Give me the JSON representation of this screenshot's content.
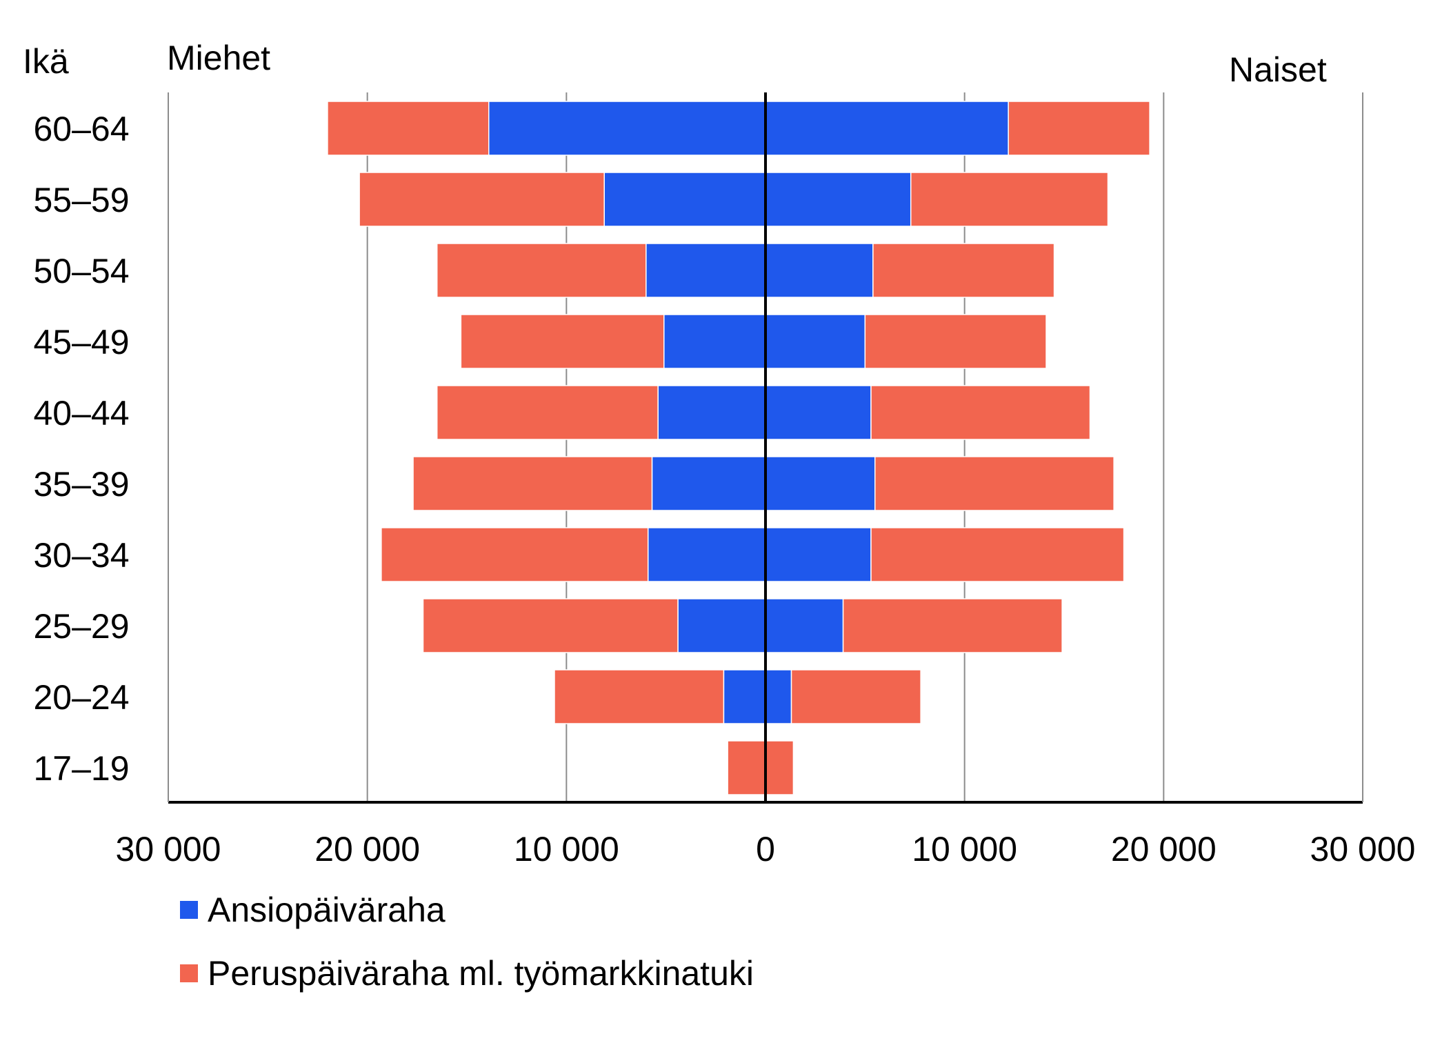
{
  "chart_data": {
    "type": "bar",
    "orientation": "horizontal",
    "layout": "population-pyramid",
    "category_axis_label": "Ikä",
    "left_group_label": "Miehet",
    "right_group_label": "Naiset",
    "categories": [
      "60–64",
      "55–59",
      "50–54",
      "45–49",
      "40–44",
      "35–39",
      "30–34",
      "25–29",
      "20–24",
      "17–19"
    ],
    "x_tick_values": [
      -30000,
      -20000,
      -10000,
      0,
      10000,
      20000,
      30000
    ],
    "x_tick_labels": [
      "30 000",
      "20 000",
      "10 000",
      "0",
      "10 000",
      "20 000",
      "30 000"
    ],
    "xlim": [
      -30000,
      30000
    ],
    "grid": true,
    "legend_position": "bottom-left",
    "series": [
      {
        "name": "Ansiopäiväraha",
        "color": "#1f58ec",
        "men": [
          13900,
          8100,
          6000,
          5100,
          5400,
          5700,
          5900,
          4400,
          2100,
          0
        ],
        "women": [
          12200,
          7300,
          5400,
          5000,
          5300,
          5500,
          5300,
          3900,
          1300,
          0
        ]
      },
      {
        "name": "Peruspäiväraha ml. työmarkkinatuki",
        "color": "#f2654f",
        "men": [
          8100,
          12300,
          10500,
          10200,
          11100,
          12000,
          13400,
          12800,
          8500,
          1900
        ],
        "women": [
          7100,
          9900,
          9100,
          9100,
          11000,
          12000,
          12700,
          11000,
          6500,
          1400
        ]
      }
    ]
  }
}
